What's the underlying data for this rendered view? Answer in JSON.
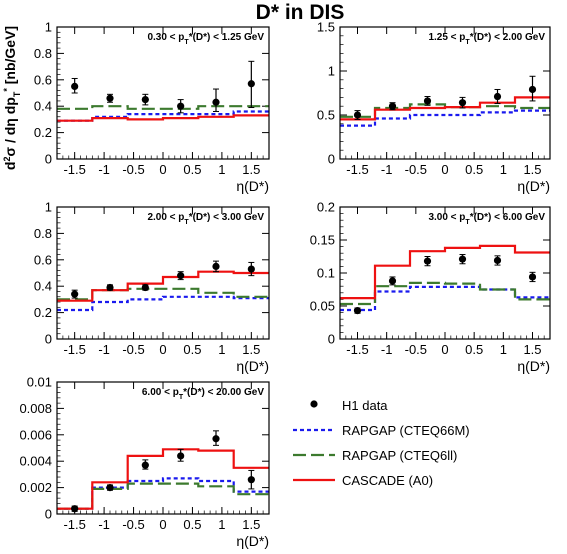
{
  "title": "D* in DIS",
  "ylabel": "d²σ / dη dp_T* [nb/GeV]",
  "legend": {
    "placement": "bottom-right",
    "entries": [
      {
        "key": "data",
        "label": "H1 data",
        "color": "#000000",
        "style": "marker"
      },
      {
        "key": "rap66",
        "label": "RAPGAP (CTEQ66M)",
        "color": "#1a1aee",
        "style": "dotted"
      },
      {
        "key": "rap6",
        "label": "RAPGAP (CTEQ6ll)",
        "color": "#3c7a2e",
        "style": "dashed"
      },
      {
        "key": "casc",
        "label": "CASCADE (A0)",
        "color": "#ee1111",
        "style": "solid"
      }
    ]
  },
  "chart_data": [
    {
      "type": "line",
      "title": "0.30 < p_T*(D*) < 1.25 GeV",
      "xlabel": "η(D*)",
      "xlim": [
        -1.8,
        1.8
      ],
      "ylim": [
        0,
        1
      ],
      "xticks": [
        -1.5,
        -1,
        -0.5,
        0,
        0.5,
        1,
        1.5
      ],
      "xticklabels": [
        "-1.5",
        "-1",
        "-0.5",
        "0",
        "0.5",
        "1",
        "1.5"
      ],
      "yticks": [
        0,
        0.2,
        0.4,
        0.6,
        0.8,
        1
      ],
      "yticklabels": [
        "0",
        "0.2",
        "0.4",
        "0.6",
        "0.8",
        "1"
      ],
      "bin_edges": [
        -1.8,
        -1.2,
        -0.6,
        0,
        0.6,
        1.2,
        1.8
      ],
      "data": {
        "x": [
          -1.5,
          -0.9,
          -0.3,
          0.3,
          0.9,
          1.5
        ],
        "y": [
          0.55,
          0.46,
          0.45,
          0.4,
          0.43,
          0.57
        ],
        "err_lo": [
          0.05,
          0.03,
          0.04,
          0.05,
          0.07,
          0.18
        ],
        "err_hi": [
          0.06,
          0.03,
          0.04,
          0.05,
          0.1,
          0.17
        ]
      },
      "series": [
        {
          "key": "rap66",
          "values": [
            0.29,
            0.32,
            0.34,
            0.34,
            0.34,
            0.36
          ]
        },
        {
          "key": "rap6",
          "values": [
            0.38,
            0.4,
            0.38,
            0.38,
            0.4,
            0.4
          ]
        },
        {
          "key": "casc",
          "values": [
            0.29,
            0.31,
            0.3,
            0.31,
            0.32,
            0.33
          ]
        }
      ]
    },
    {
      "type": "line",
      "title": "1.25 < p_T*(D*) < 2.00 GeV",
      "xlabel": "η(D*)",
      "xlim": [
        -1.8,
        1.8
      ],
      "ylim": [
        0,
        1.5
      ],
      "xticks": [
        -1.5,
        -1,
        -0.5,
        0,
        0.5,
        1,
        1.5
      ],
      "xticklabels": [
        "-1.5",
        "-1",
        "-0.5",
        "0",
        "0.5",
        "1",
        "1.5"
      ],
      "yticks": [
        0,
        0.5,
        1,
        1.5
      ],
      "yticklabels": [
        "0",
        "0.5",
        "1",
        "1.5"
      ],
      "bin_edges": [
        -1.8,
        -1.2,
        -0.6,
        0,
        0.6,
        1.2,
        1.8
      ],
      "data": {
        "x": [
          -1.5,
          -0.9,
          -0.3,
          0.3,
          0.9,
          1.5
        ],
        "y": [
          0.5,
          0.6,
          0.66,
          0.64,
          0.71,
          0.79
        ],
        "err_lo": [
          0.05,
          0.04,
          0.05,
          0.06,
          0.08,
          0.13
        ],
        "err_hi": [
          0.05,
          0.04,
          0.05,
          0.06,
          0.08,
          0.15
        ]
      },
      "series": [
        {
          "key": "rap66",
          "values": [
            0.38,
            0.46,
            0.5,
            0.5,
            0.53,
            0.55
          ]
        },
        {
          "key": "rap6",
          "values": [
            0.48,
            0.58,
            0.62,
            0.59,
            0.6,
            0.58
          ]
        },
        {
          "key": "casc",
          "values": [
            0.45,
            0.56,
            0.58,
            0.59,
            0.64,
            0.7
          ]
        }
      ]
    },
    {
      "type": "line",
      "title": "2.00 < p_T*(D*) < 3.00 GeV",
      "xlabel": "η(D*)",
      "xlim": [
        -1.8,
        1.8
      ],
      "ylim": [
        0,
        1
      ],
      "xticks": [
        -1.5,
        -1,
        -0.5,
        0,
        0.5,
        1,
        1.5
      ],
      "xticklabels": [
        "-1.5",
        "-1",
        "-0.5",
        "0",
        "0.5",
        "1",
        "1.5"
      ],
      "yticks": [
        0,
        0.2,
        0.4,
        0.6,
        0.8,
        1
      ],
      "yticklabels": [
        "0",
        "0.2",
        "0.4",
        "0.6",
        "0.8",
        "1"
      ],
      "bin_edges": [
        -1.8,
        -1.2,
        -0.6,
        0,
        0.6,
        1.2,
        1.8
      ],
      "data": {
        "x": [
          -1.5,
          -0.9,
          -0.3,
          0.3,
          0.9,
          1.5
        ],
        "y": [
          0.34,
          0.39,
          0.39,
          0.48,
          0.55,
          0.53
        ],
        "err_lo": [
          0.03,
          0.02,
          0.02,
          0.03,
          0.04,
          0.05
        ],
        "err_hi": [
          0.03,
          0.02,
          0.02,
          0.03,
          0.04,
          0.05
        ]
      },
      "series": [
        {
          "key": "rap66",
          "values": [
            0.22,
            0.28,
            0.3,
            0.32,
            0.32,
            0.31
          ]
        },
        {
          "key": "rap6",
          "values": [
            0.3,
            0.37,
            0.38,
            0.38,
            0.35,
            0.32
          ]
        },
        {
          "key": "casc",
          "values": [
            0.29,
            0.37,
            0.42,
            0.47,
            0.51,
            0.5
          ]
        }
      ]
    },
    {
      "type": "line",
      "title": "3.00 < p_T*(D*) < 6.00 GeV",
      "xlabel": "η(D*)",
      "xlim": [
        -1.8,
        1.8
      ],
      "ylim": [
        0,
        0.2
      ],
      "xticks": [
        -1.5,
        -1,
        -0.5,
        0,
        0.5,
        1,
        1.5
      ],
      "xticklabels": [
        "-1.5",
        "-1",
        "-0.5",
        "0",
        "0.5",
        "1",
        "1.5"
      ],
      "yticks": [
        0,
        0.05,
        0.1,
        0.15,
        0.2
      ],
      "yticklabels": [
        "0",
        "0.05",
        "0.1",
        "0.15",
        "0.2"
      ],
      "bin_edges": [
        -1.8,
        -1.2,
        -0.6,
        0,
        0.6,
        1.2,
        1.8
      ],
      "data": {
        "x": [
          -1.5,
          -0.9,
          -0.3,
          0.3,
          0.9,
          1.5
        ],
        "y": [
          0.043,
          0.088,
          0.118,
          0.121,
          0.119,
          0.094
        ],
        "err_lo": [
          0.004,
          0.006,
          0.007,
          0.007,
          0.007,
          0.007
        ],
        "err_hi": [
          0.004,
          0.006,
          0.007,
          0.007,
          0.007,
          0.007
        ]
      },
      "series": [
        {
          "key": "rap66",
          "values": [
            0.044,
            0.072,
            0.079,
            0.079,
            0.075,
            0.063
          ]
        },
        {
          "key": "rap6",
          "values": [
            0.053,
            0.08,
            0.085,
            0.084,
            0.075,
            0.06
          ]
        },
        {
          "key": "casc",
          "values": [
            0.062,
            0.111,
            0.133,
            0.138,
            0.141,
            0.131
          ]
        }
      ]
    },
    {
      "type": "line",
      "title": "6.00 < p_T*(D*) < 20.00 GeV",
      "xlabel": "η(D*)",
      "xlim": [
        -1.8,
        1.8
      ],
      "ylim": [
        0,
        0.01
      ],
      "xticks": [
        -1.5,
        -1,
        -0.5,
        0,
        0.5,
        1,
        1.5
      ],
      "xticklabels": [
        "-1.5",
        "-1",
        "-0.5",
        "0",
        "0.5",
        "1",
        "1.5"
      ],
      "yticks": [
        0,
        0.002,
        0.004,
        0.006,
        0.008,
        0.01
      ],
      "yticklabels": [
        "0",
        "0.002",
        "0.004",
        "0.006",
        "0.008",
        "0.01"
      ],
      "bin_edges": [
        -1.8,
        -1.2,
        -0.6,
        0,
        0.6,
        1.2,
        1.8
      ],
      "data": {
        "x": [
          -1.5,
          -0.9,
          -0.3,
          0.3,
          0.9,
          1.5
        ],
        "y": [
          0.0004,
          0.002,
          0.0037,
          0.0044,
          0.0057,
          0.0026
        ],
        "err_lo": [
          0.0002,
          0.0002,
          0.0003,
          0.0004,
          0.0005,
          0.0007
        ],
        "err_hi": [
          0.0002,
          0.0002,
          0.0004,
          0.0005,
          0.0006,
          0.0007
        ]
      },
      "series": [
        {
          "key": "rap66",
          "values": [
            0.0004,
            0.002,
            0.0025,
            0.0027,
            0.0025,
            0.0017
          ]
        },
        {
          "key": "rap6",
          "values": [
            0.0004,
            0.0019,
            0.0023,
            0.0023,
            0.0021,
            0.0015
          ]
        },
        {
          "key": "casc",
          "values": [
            0.0004,
            0.0024,
            0.0044,
            0.0049,
            0.0048,
            0.0035
          ]
        }
      ]
    }
  ]
}
